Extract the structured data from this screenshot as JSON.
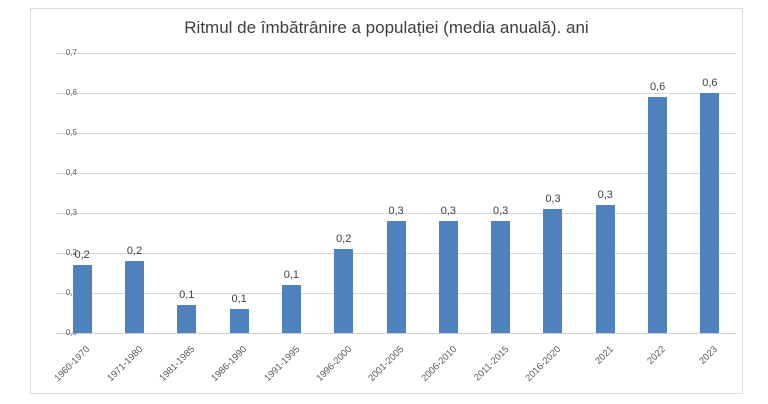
{
  "title": "Ritmul de îmbătrânire a populației (media anuală). ani",
  "colors": {
    "bar": "#4f81bd",
    "gridline": "#d9d9d9",
    "frame_border": "#d9d9d9",
    "title_text": "#3f3f3f",
    "tick_text": "#595959",
    "value_label_text": "#404040"
  },
  "chart_data": {
    "type": "bar",
    "title": "Ritmul de îmbătrânire a populației (media anuală). ani",
    "xlabel": "",
    "ylabel": "",
    "categories": [
      "1960-1970",
      "1971-1980",
      "1981-1985",
      "1986-1990",
      "1991-1995",
      "1996-2000",
      "2001-2005",
      "2006-2010",
      "2011-2015",
      "2016-2020",
      "2021",
      "2022",
      "2023"
    ],
    "values": [
      0.17,
      0.18,
      0.07,
      0.06,
      0.12,
      0.21,
      0.28,
      0.28,
      0.28,
      0.31,
      0.32,
      0.59,
      0.6
    ],
    "value_labels": [
      "0,2",
      "0,2",
      "0,1",
      "0,1",
      "0,1",
      "0,2",
      "0,3",
      "0,3",
      "0,3",
      "0,3",
      "0,3",
      "0,6",
      "0,6"
    ],
    "ylim": [
      0,
      0.7
    ],
    "ytick_step": 0.1,
    "ytick_labels": [
      "0,0",
      "0,1",
      "0,2",
      "0,3",
      "0,4",
      "0,5",
      "0,6",
      "0,7"
    ],
    "grid": true,
    "legend": false,
    "decimal_separator": ","
  }
}
